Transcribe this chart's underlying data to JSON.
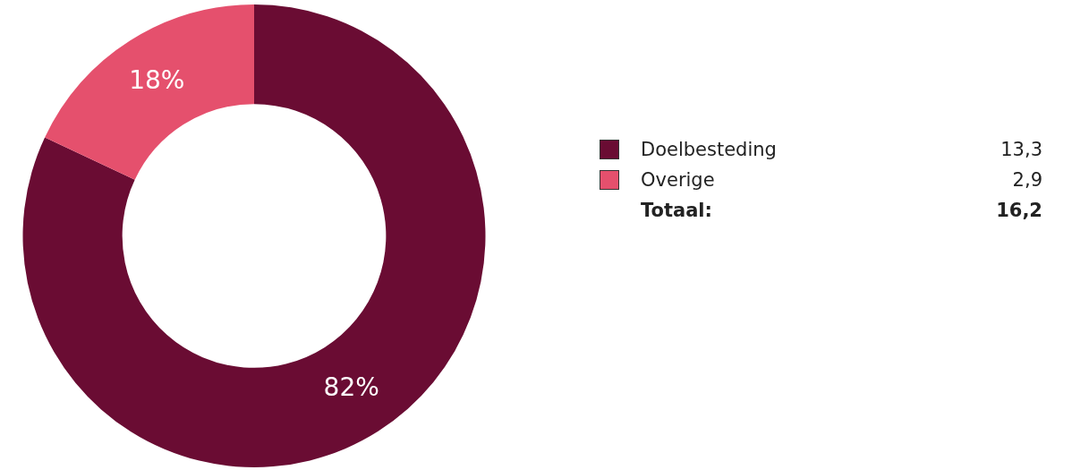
{
  "chart_data": {
    "type": "donut",
    "categories": [
      "Doelbesteding",
      "Overige"
    ],
    "values": [
      82,
      18
    ],
    "colors": [
      "#6a0c33",
      "#e5506d"
    ],
    "value_labels": [
      "82%",
      "18%"
    ],
    "legend": "right",
    "totals": [
      "16,2"
    ],
    "annotations": [
      "13,3",
      "2,9",
      "Totaal:"
    ]
  }
}
